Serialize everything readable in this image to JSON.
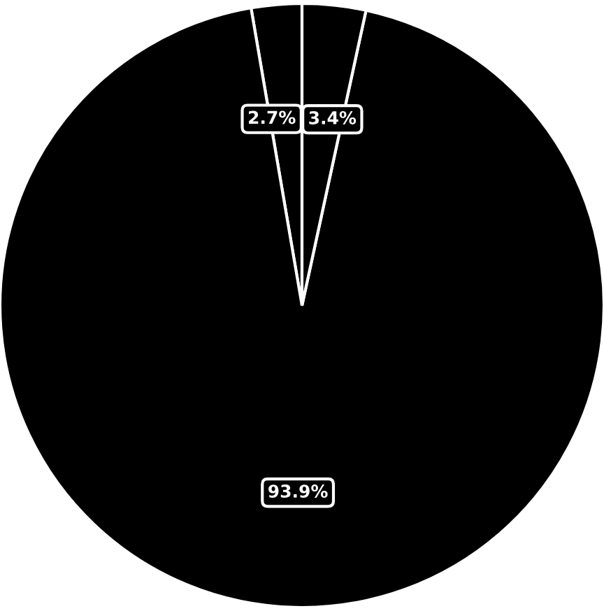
{
  "chart_data": {
    "type": "pie",
    "categories": [
      null,
      null,
      null
    ],
    "values": [
      2.7,
      93.9,
      3.4
    ],
    "colors": [
      "#000000",
      "#000000",
      "#000000"
    ],
    "value_labels": [
      "2.7%",
      "93.9%",
      "3.4%"
    ]
  }
}
